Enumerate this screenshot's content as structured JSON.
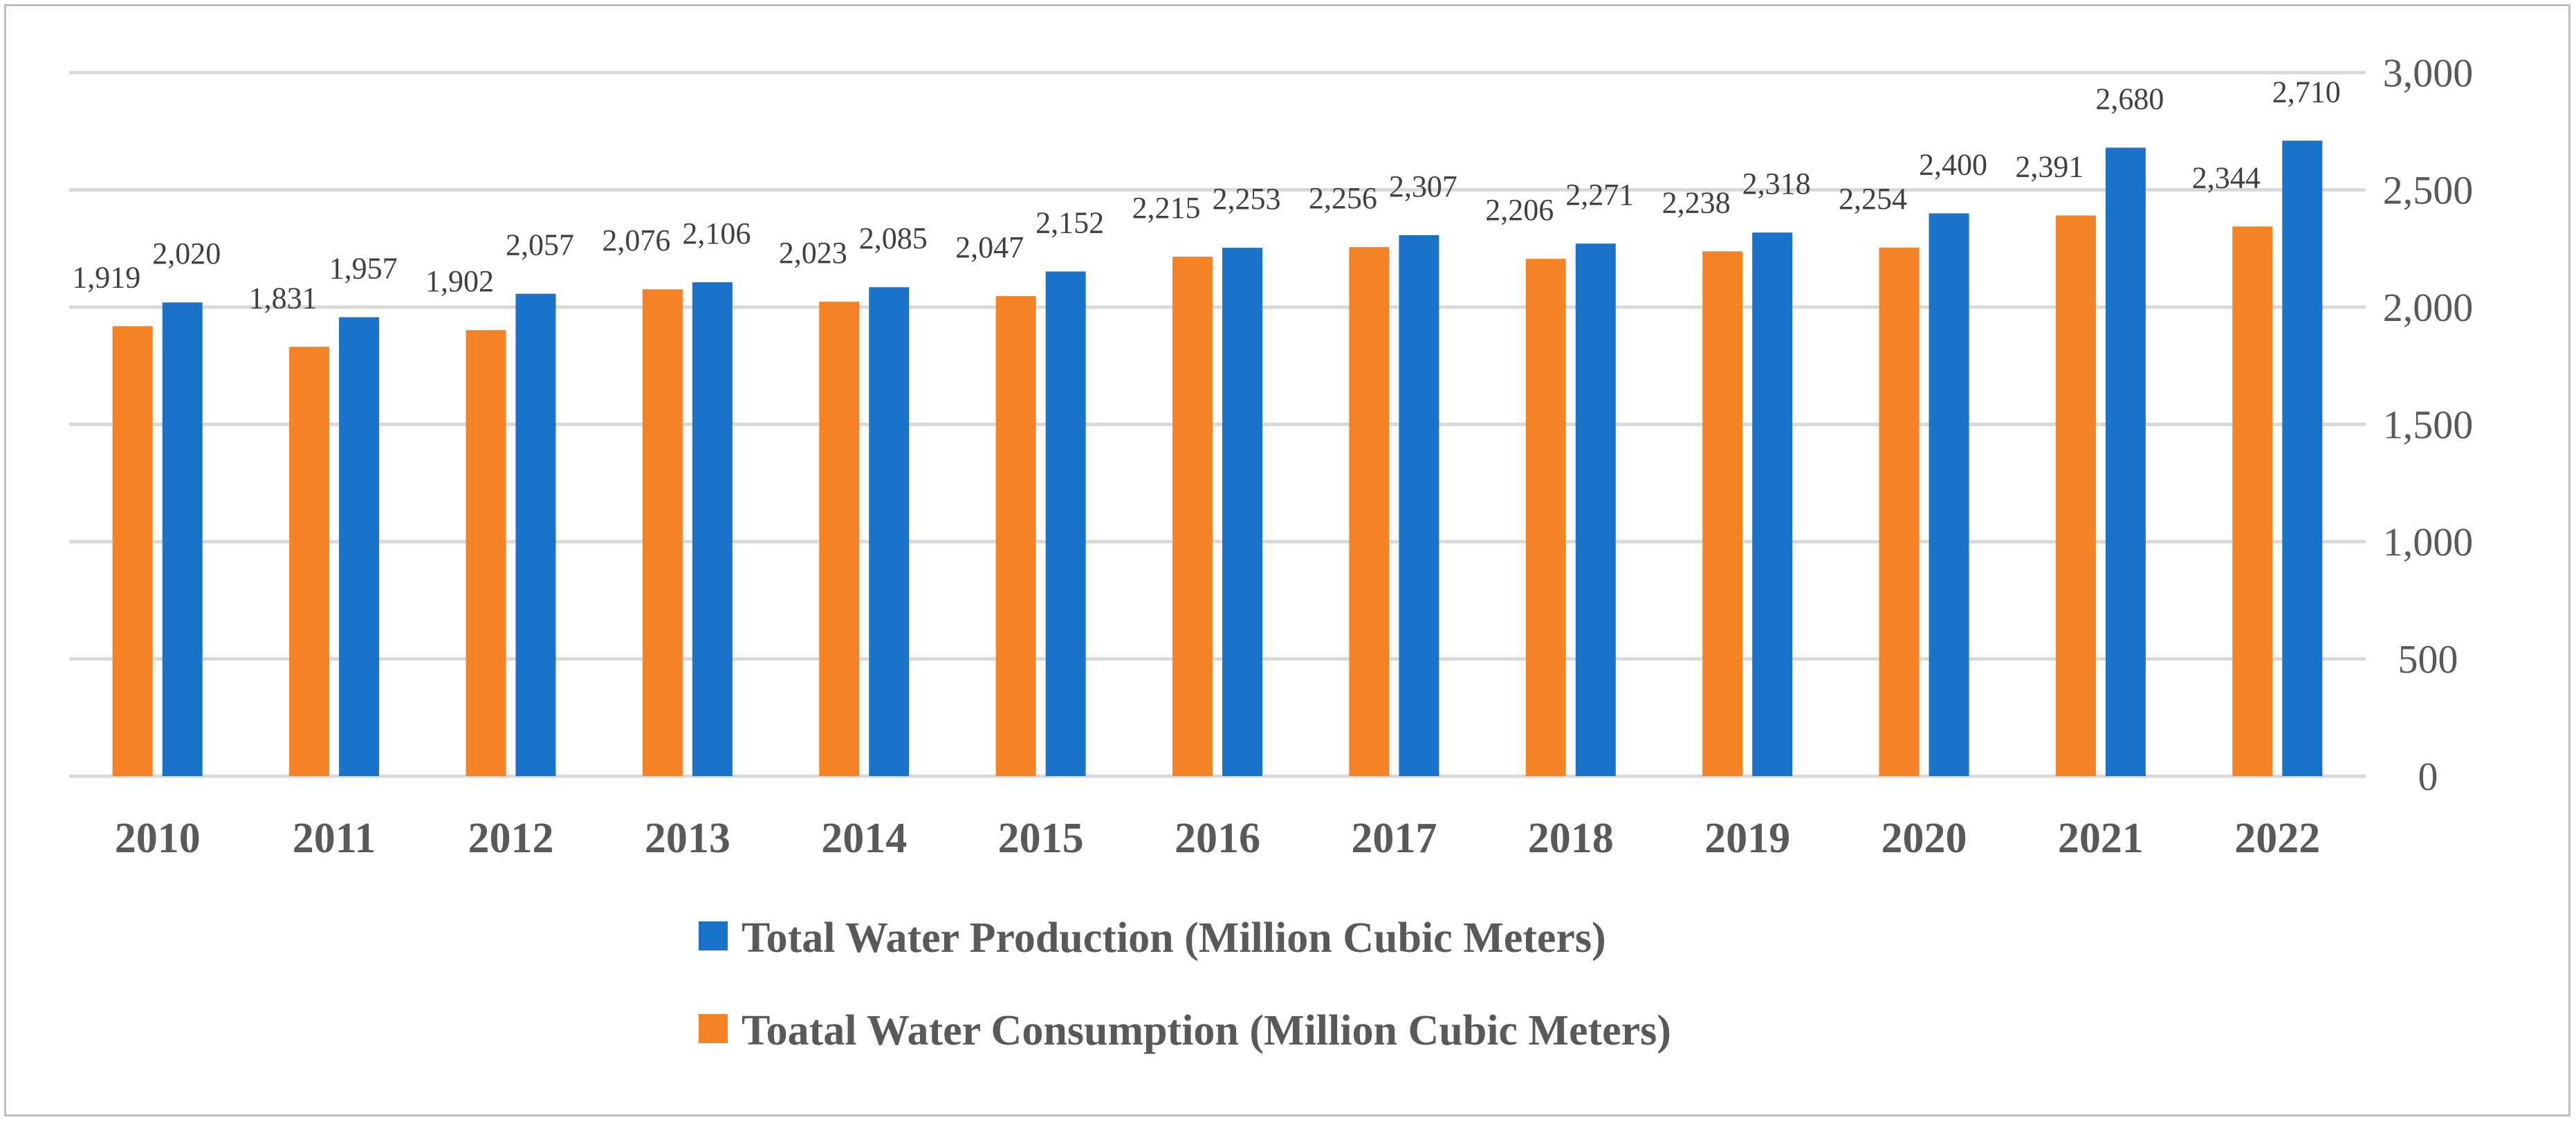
{
  "chart_data": {
    "type": "bar",
    "title": "",
    "xlabel": "",
    "ylabel": "",
    "ylim": [
      0,
      3000
    ],
    "y_ticks": [
      "0",
      "500",
      "1,000",
      "1,500",
      "2,000",
      "2,500",
      "3,000"
    ],
    "y_axis_side": "right",
    "grid": true,
    "legend_position": "bottom",
    "categories": [
      "2010",
      "2011",
      "2012",
      "2013",
      "2014",
      "2015",
      "2016",
      "2017",
      "2018",
      "2019",
      "2020",
      "2021",
      "2022"
    ],
    "series": [
      {
        "name": "Toatal Water  Consumption (Million Cubic Meters)",
        "color": "#f58225",
        "values": [
          1919,
          1831,
          1902,
          2076,
          2023,
          2047,
          2215,
          2256,
          2206,
          2238,
          2254,
          2391,
          2344
        ],
        "labels": [
          "1,919",
          "1,831",
          "1,902",
          "2,076",
          "2,023",
          "2,047",
          "2,215",
          "2,256",
          "2,206",
          "2,238",
          "2,254",
          "2,391",
          "2,344"
        ]
      },
      {
        "name": "Total Water Production (Million Cubic Meters)",
        "color": "#1a73c9",
        "values": [
          2020,
          1957,
          2057,
          2106,
          2085,
          2152,
          2253,
          2307,
          2271,
          2318,
          2400,
          2680,
          2710
        ],
        "labels": [
          "2,020",
          "1,957",
          "2,057",
          "2,106",
          "2,085",
          "2,152",
          "2,253",
          "2,307",
          "2,271",
          "2,318",
          "2,400",
          "2,680",
          "2,710"
        ]
      }
    ],
    "legend": [
      {
        "label": "Total Water Production (Million Cubic Meters)",
        "color": "#1a73c9"
      },
      {
        "label": "Toatal Water  Consumption (Million Cubic Meters)",
        "color": "#f58225"
      }
    ]
  }
}
